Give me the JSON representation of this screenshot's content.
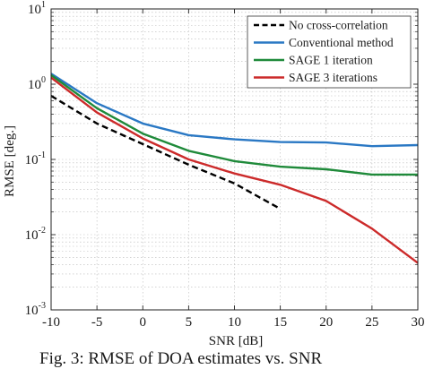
{
  "chart_data": {
    "type": "line",
    "title": "",
    "xlabel": "SNR [dB]",
    "ylabel": "RMSE [deg.]",
    "xscale": "linear",
    "yscale": "log",
    "xlim": [
      -10,
      30
    ],
    "ylim": [
      0.001,
      10
    ],
    "grid": "major and minor, dotted",
    "legend_position": "top-right",
    "xticks": [
      -10,
      -5,
      0,
      5,
      10,
      15,
      20,
      25,
      30
    ],
    "xtick_labels": [
      "-10",
      "-5",
      "0",
      "5",
      "10",
      "15",
      "20",
      "25",
      "30"
    ],
    "yticks": [
      0.001,
      0.01,
      0.1,
      1,
      10
    ],
    "ytick_labels": [
      {
        "base": "10",
        "exp": "-3"
      },
      {
        "base": "10",
        "exp": "-2"
      },
      {
        "base": "10",
        "exp": "-1"
      },
      {
        "base": "10",
        "exp": "0"
      },
      {
        "base": "10",
        "exp": "1"
      }
    ],
    "series": [
      {
        "name": "No cross-correlation",
        "color": "#000000",
        "style": "dashed",
        "x": [
          -10,
          -5,
          0,
          5,
          10,
          15
        ],
        "y": [
          0.7,
          0.3,
          0.16,
          0.085,
          0.048,
          0.022
        ]
      },
      {
        "name": "Conventional method",
        "color": "#2a78c4",
        "style": "solid",
        "x": [
          -10,
          -5,
          0,
          5,
          10,
          15,
          20,
          25,
          30
        ],
        "y": [
          1.38,
          0.56,
          0.3,
          0.21,
          0.185,
          0.17,
          0.168,
          0.15,
          0.155
        ]
      },
      {
        "name": "SAGE 1 iteration",
        "color": "#1f8a3a",
        "style": "solid",
        "x": [
          -10,
          -5,
          0,
          5,
          10,
          15,
          20,
          25,
          30
        ],
        "y": [
          1.32,
          0.48,
          0.22,
          0.13,
          0.095,
          0.08,
          0.074,
          0.063,
          0.063
        ]
      },
      {
        "name": "SAGE 3 iterations",
        "color": "#cc2a2a",
        "style": "solid",
        "x": [
          -10,
          -5,
          0,
          5,
          10,
          15,
          20,
          25,
          30
        ],
        "y": [
          1.22,
          0.42,
          0.19,
          0.1,
          0.065,
          0.046,
          0.028,
          0.012,
          0.0042
        ]
      }
    ]
  },
  "caption": "Fig. 3: RMSE of DOA estimates vs. SNR"
}
